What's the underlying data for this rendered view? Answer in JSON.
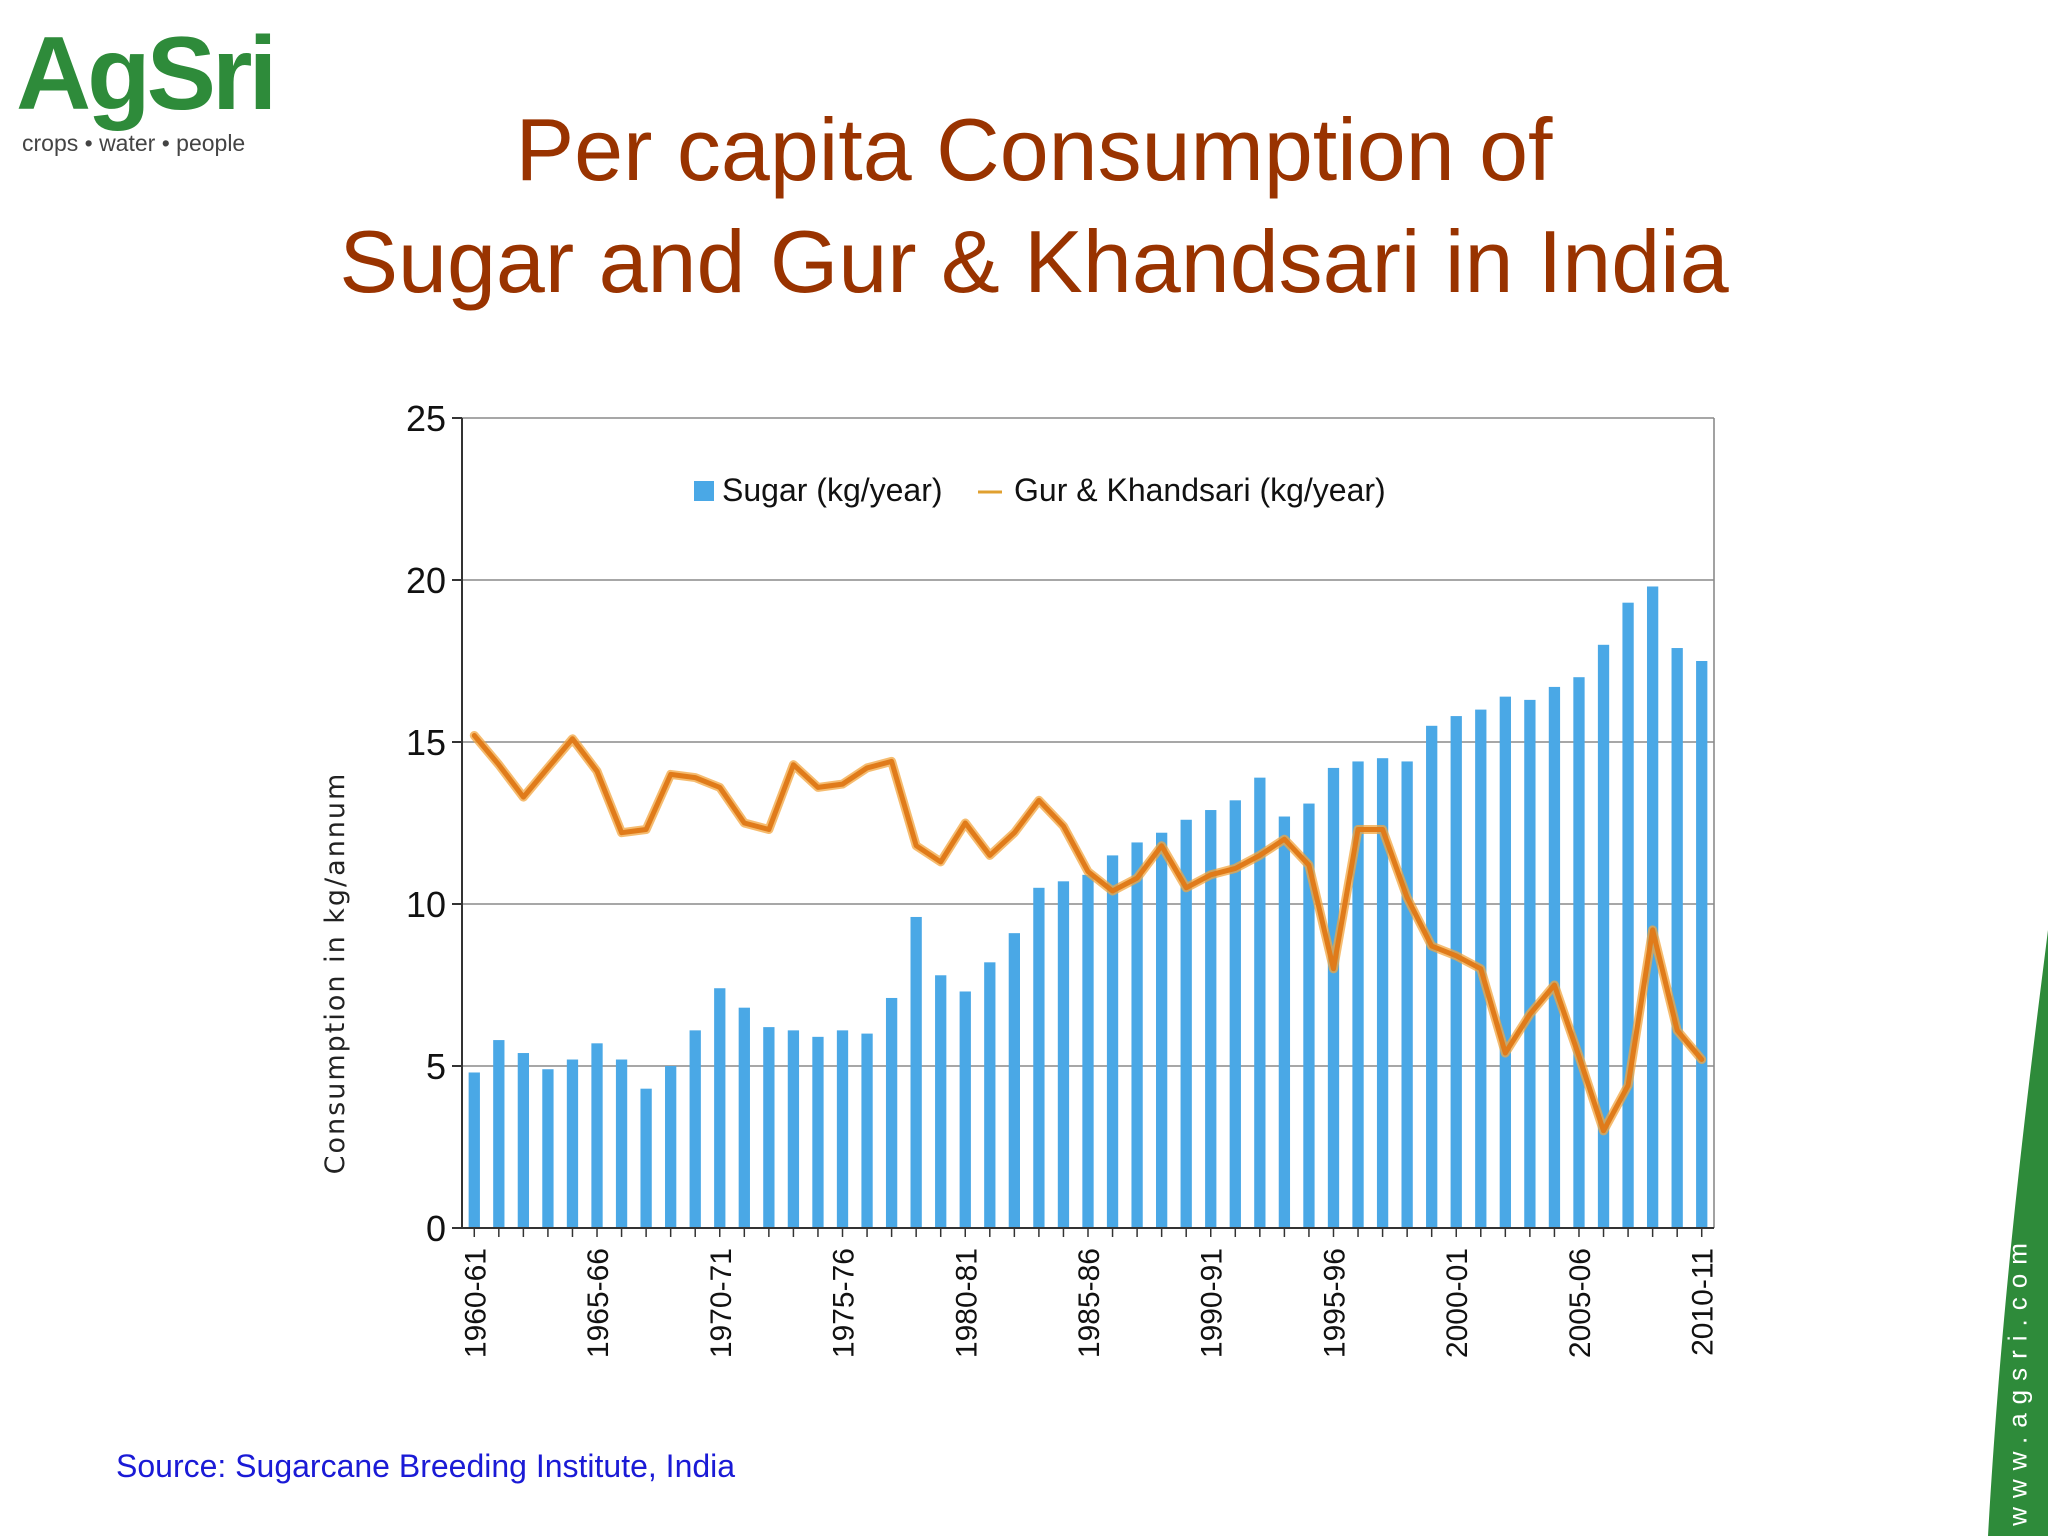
{
  "brand": {
    "logo_text": "AgSri",
    "tagline": "crops • water • people",
    "color": "#2e8b3a",
    "accent": "#3a8fd6"
  },
  "slide": {
    "title_line1": "Per capita Consumption of",
    "title_line2": "Sugar and Gur & Khandsari in India",
    "title_color": "#993300",
    "source": "Source: Sugarcane Breeding Institute, India",
    "website": "www.agsri.com"
  },
  "chart_data": {
    "type": "bar",
    "ylabel": "Consumption in kg/annum",
    "xlabel": "",
    "ylim": [
      0,
      25
    ],
    "yticks": [
      0,
      5,
      10,
      15,
      20,
      25
    ],
    "grid": true,
    "legend_position": "top-center",
    "x_tick_labels": [
      "1960-61",
      "1965-66",
      "1970-71",
      "1975-76",
      "1980-81",
      "1985-86",
      "1990-91",
      "1995-96",
      "2000-01",
      "2005-06",
      "2010-11"
    ],
    "x_tick_every": 5,
    "categories": [
      "1960-61",
      "1961-62",
      "1962-63",
      "1963-64",
      "1964-65",
      "1965-66",
      "1966-67",
      "1967-68",
      "1968-69",
      "1969-70",
      "1970-71",
      "1971-72",
      "1972-73",
      "1973-74",
      "1974-75",
      "1975-76",
      "1976-77",
      "1977-78",
      "1978-79",
      "1979-80",
      "1980-81",
      "1981-82",
      "1982-83",
      "1983-84",
      "1984-85",
      "1985-86",
      "1986-87",
      "1987-88",
      "1988-89",
      "1989-90",
      "1990-91",
      "1991-92",
      "1992-93",
      "1993-94",
      "1994-95",
      "1995-96",
      "1996-97",
      "1997-98",
      "1998-99",
      "1999-00",
      "2000-01",
      "2001-02",
      "2002-03",
      "2003-04",
      "2004-05",
      "2005-06",
      "2006-07",
      "2007-08",
      "2008-09",
      "2009-10",
      "2010-11"
    ],
    "series": [
      {
        "name": "Sugar (kg/year)",
        "kind": "bar",
        "color": "#4aa8e6",
        "values": [
          4.8,
          5.8,
          5.4,
          4.9,
          5.2,
          5.7,
          5.2,
          4.3,
          5.0,
          6.1,
          7.4,
          6.8,
          6.2,
          6.1,
          5.9,
          6.1,
          6.0,
          7.1,
          9.6,
          7.8,
          7.3,
          8.2,
          9.1,
          10.5,
          10.7,
          10.9,
          11.5,
          11.9,
          12.2,
          12.6,
          12.9,
          13.2,
          13.9,
          12.7,
          13.1,
          14.2,
          14.4,
          14.5,
          14.4,
          15.5,
          15.8,
          16.0,
          16.4,
          16.3,
          16.7,
          17.0,
          18.0,
          19.3,
          19.8,
          17.9,
          17.5
        ]
      },
      {
        "name": "Gur & Khandsari (kg/year)",
        "kind": "line",
        "color": "#e07b1a",
        "values": [
          15.2,
          14.3,
          13.3,
          14.2,
          15.1,
          14.1,
          12.2,
          12.3,
          14.0,
          13.9,
          13.6,
          12.5,
          12.3,
          14.3,
          13.6,
          13.7,
          14.2,
          14.4,
          11.8,
          11.3,
          12.5,
          11.5,
          12.2,
          13.2,
          12.4,
          11.0,
          10.4,
          10.8,
          11.8,
          10.5,
          10.9,
          11.1,
          11.5,
          12.0,
          11.2,
          8.0,
          12.3,
          12.3,
          10.2,
          8.7,
          8.4,
          8.0,
          5.4,
          6.6,
          7.5,
          5.3,
          3.0,
          4.4,
          9.2,
          6.1,
          5.2
        ]
      }
    ]
  }
}
